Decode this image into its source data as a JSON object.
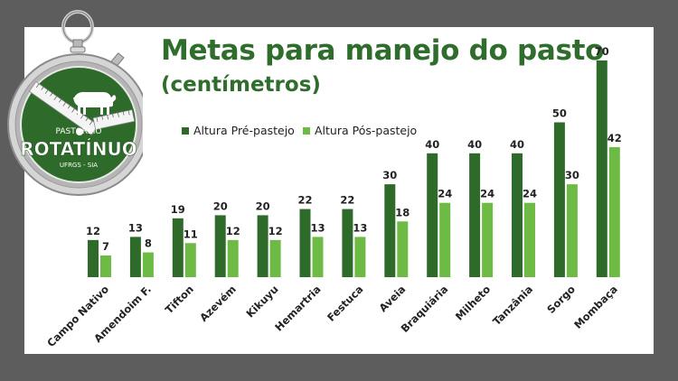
{
  "colors": {
    "pre": "#2e6b2a",
    "pos": "#6dbb45",
    "title": "#2f6d2c",
    "background": "#5d5d5d"
  },
  "logo": {
    "line1": "PASTOREIO",
    "line2": "ROTATÍNUO",
    "line3": "UFRGS - SIA"
  },
  "chart_data": {
    "type": "bar",
    "title": "Metas para manejo do pasto",
    "subtitle": "(centímetros)",
    "categories": [
      "Campo Nativo",
      "Amendoim F.",
      "Tifton",
      "Azevém",
      "Kikuyu",
      "Hemartria",
      "Festuca",
      "Aveia",
      "Braquiária",
      "Milheto",
      "Tanzânia",
      "Sorgo",
      "Mombaça"
    ],
    "series": [
      {
        "name": "Altura Pré-pastejo",
        "values": [
          12,
          13,
          19,
          20,
          20,
          22,
          22,
          30,
          40,
          40,
          40,
          50,
          70
        ]
      },
      {
        "name": "Altura Pós-pastejo",
        "values": [
          7,
          8,
          11,
          12,
          12,
          13,
          13,
          18,
          24,
          24,
          24,
          30,
          42
        ]
      }
    ],
    "ylim": [
      0,
      70
    ],
    "grid": false,
    "legend": "top-left",
    "data_labels": true
  }
}
